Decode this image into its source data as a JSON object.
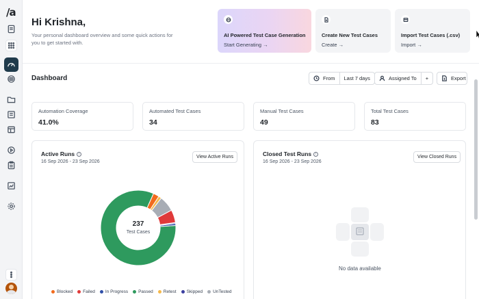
{
  "sidebar": {
    "logo": "/a",
    "items": [
      {
        "icon": "document-icon"
      },
      {
        "icon": "apps-grid-icon"
      },
      {
        "icon": "dashboard-gauge-icon",
        "active": true
      },
      {
        "icon": "ai-chip-icon"
      },
      {
        "icon": "folder-icon"
      },
      {
        "icon": "test-case-icon"
      },
      {
        "icon": "table-icon"
      },
      {
        "icon": "play-circle-icon"
      },
      {
        "icon": "clipboard-icon"
      },
      {
        "icon": "report-chart-icon"
      },
      {
        "icon": "settings-gear-icon"
      },
      {
        "icon": "more-vertical-icon"
      }
    ]
  },
  "header": {
    "greeting": "Hi Krishna,",
    "subtext": "Your personal dashboard overview and some quick actions for you to get started with."
  },
  "quick_actions": [
    {
      "title": "AI Powered Test Case Generation",
      "link": "Start Generating →",
      "icon": "ai-chip-icon"
    },
    {
      "title": "Create New Test Cases",
      "link": "Create →",
      "icon": "file-plus-icon"
    },
    {
      "title": "Import Test Cases (.csv)",
      "link": "Import →",
      "icon": "import-table-icon"
    }
  ],
  "dashboard": {
    "title": "Dashboard",
    "filter_from": "From",
    "filter_range": "Last 7 days",
    "assigned_to": "Assigned To",
    "add": "+",
    "export": "Export"
  },
  "stats": [
    {
      "label": "Automation Coverage",
      "value": "41.0%"
    },
    {
      "label": "Automated Test Cases",
      "value": "34"
    },
    {
      "label": "Manual Test Cases",
      "value": "49"
    },
    {
      "label": "Total Test Cases",
      "value": "83"
    }
  ],
  "active_runs": {
    "title": "Active Runs",
    "date_range": "16 Sep 2026 - 23 Sep 2026",
    "button": "View Active Runs",
    "total": "237",
    "total_label": "Test Cases"
  },
  "closed_runs": {
    "title": "Closed Test Runs",
    "date_range": "16 Sep 2026 - 23 Sep 2026",
    "button": "View Closed Runs",
    "empty": "No data available"
  },
  "chart_data": {
    "type": "pie",
    "title": "",
    "center_value": 237,
    "categories": [
      "Blocked",
      "Failed",
      "In Progress",
      "Passed",
      "Retest",
      "Skipped",
      "UnTested"
    ],
    "values": [
      6,
      13,
      2,
      196,
      3,
      1,
      16
    ],
    "colors": [
      "#f26b1d",
      "#e03a3a",
      "#2f4fa8",
      "#2e9a5e",
      "#f5b84a",
      "#3b3fa0",
      "#a8adb5"
    ],
    "legend_position": "bottom"
  }
}
